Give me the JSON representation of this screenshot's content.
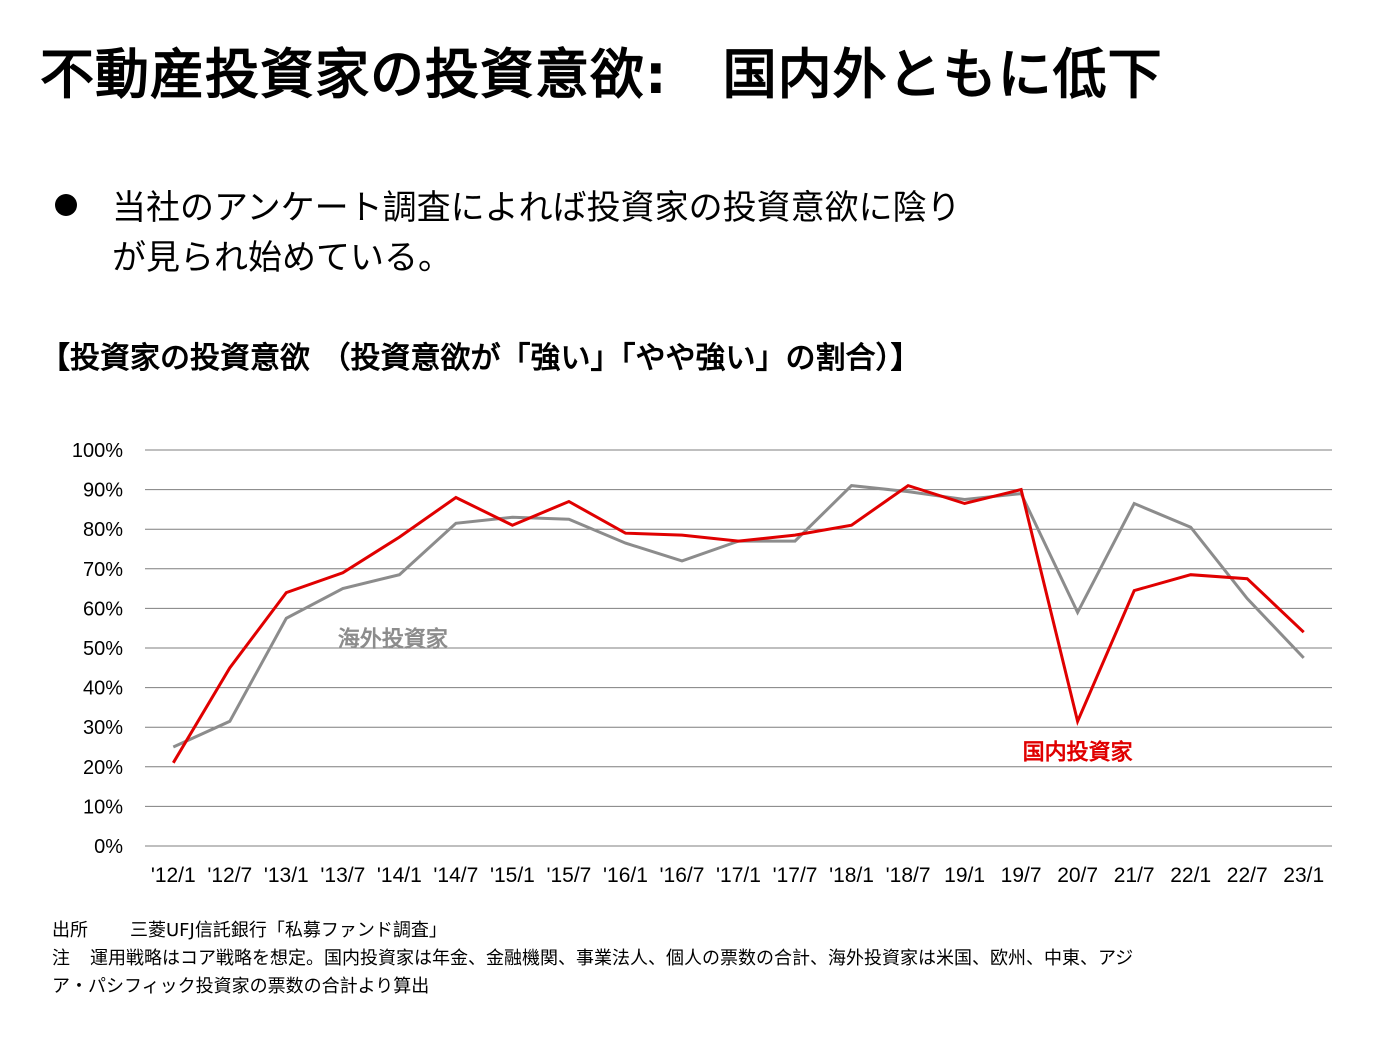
{
  "title": "不動産投資家の投資意欲:　国内外ともに低下",
  "bullet": {
    "line1": "当社のアンケート調査によれば投資家の投資意欲に陰り",
    "line2": "が見られ始めている。"
  },
  "chart_heading": "【投資家の投資意欲 （投資意欲が「強い」「やや強い」の割合）】",
  "colors": {
    "domestic": "#E00000",
    "overseas": "#8C8C8C",
    "grid": "#7F7F7F"
  },
  "chart_data": {
    "type": "line",
    "categories": [
      "'12/1",
      "'12/7",
      "'13/1",
      "'13/7",
      "'14/1",
      "'14/7",
      "'15/1",
      "'15/7",
      "'16/1",
      "'16/7",
      "'17/1",
      "'17/7",
      "'18/1",
      "'18/7",
      "19/1",
      "19/7",
      "20/7",
      "21/7",
      "22/1",
      "22/7",
      "23/1"
    ],
    "y_ticks": [
      "0%",
      "10%",
      "20%",
      "30%",
      "40%",
      "50%",
      "60%",
      "70%",
      "80%",
      "90%",
      "100%"
    ],
    "ylim": [
      0,
      100
    ],
    "grid": true,
    "series": [
      {
        "name": "国内投資家",
        "color": "#E00000",
        "values": [
          21,
          45,
          64,
          69,
          78,
          88,
          81,
          87,
          79,
          78.5,
          77,
          78.5,
          81,
          91,
          86.5,
          90,
          31.5,
          64.5,
          68.5,
          67.5,
          54
        ]
      },
      {
        "name": "海外投資家",
        "color": "#8C8C8C",
        "values": [
          25,
          31.5,
          57.5,
          65,
          68.5,
          81.5,
          83,
          82.5,
          76.5,
          72,
          77,
          77,
          91,
          89.5,
          87.5,
          89,
          59,
          86.5,
          80.5,
          62.5,
          47.5
        ]
      }
    ]
  },
  "source": {
    "label": "出所",
    "text": "三菱UFJ信託銀行「私募ファンド調査」"
  },
  "note": {
    "label": "注",
    "line1": "運用戦略はコア戦略を想定。国内投資家は年金、金融機関、事業法人、個人の票数の合計、海外投資家は米国、欧州、中東、アジ",
    "line2": "ア・パシフィック投資家の票数の合計より算出"
  }
}
